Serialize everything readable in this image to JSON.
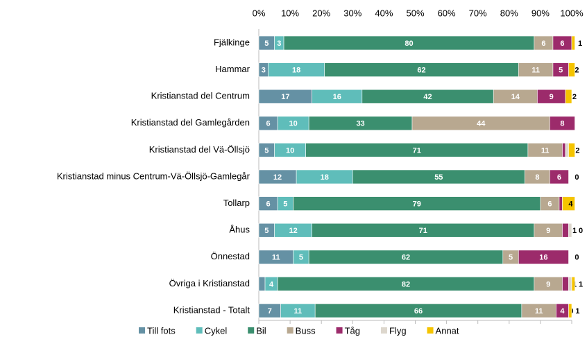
{
  "chart_data": {
    "type": "stacked-bar-horizontal",
    "categories": [
      "Fjälkinge",
      "Hammar",
      "Kristianstad del Centrum",
      "Kristianstad del Gamlegården",
      "Kristianstad del Vä-Öllsjö",
      "Kristianstad minus Centrum-Vä-Öllsjö-Gamlegår",
      "Tollarp",
      "Åhus",
      "Önnestad",
      "Övriga i Kristianstad",
      "Kristianstad - Totalt"
    ],
    "xlim": [
      0,
      100
    ],
    "xticks": [
      {
        "value": 0,
        "label": "0%"
      },
      {
        "value": 10,
        "label": "10%"
      },
      {
        "value": 20,
        "label": "20%"
      },
      {
        "value": 30,
        "label": "30%"
      },
      {
        "value": 40,
        "label": "40%"
      },
      {
        "value": 50,
        "label": "50%"
      },
      {
        "value": 60,
        "label": "60%"
      },
      {
        "value": 70,
        "label": "70%"
      },
      {
        "value": 80,
        "label": "80%"
      },
      {
        "value": 90,
        "label": "90%"
      },
      {
        "value": 100,
        "label": "100%"
      }
    ],
    "series": [
      {
        "name": "Till fots",
        "color": "#6591a4",
        "values": [
          5,
          3,
          17,
          6,
          5,
          12,
          6,
          5,
          11,
          2,
          7
        ]
      },
      {
        "name": "Cykel",
        "color": "#5fbdba",
        "values": [
          3,
          18,
          16,
          10,
          10,
          18,
          5,
          12,
          5,
          4,
          11
        ]
      },
      {
        "name": "Bil",
        "color": "#3b8f6f",
        "values": [
          80,
          62,
          42,
          33,
          71,
          55,
          79,
          71,
          62,
          82,
          66
        ]
      },
      {
        "name": "Buss",
        "color": "#b8a890",
        "values": [
          6,
          11,
          14,
          44,
          11,
          8,
          6,
          9,
          5,
          9,
          11
        ]
      },
      {
        "name": "Tåg",
        "color": "#9c2b6b",
        "values": [
          6,
          5,
          9,
          8,
          1,
          6,
          1,
          2,
          16,
          2,
          4
        ]
      },
      {
        "name": "Flyg",
        "color": "#ddd7cd",
        "values": [
          0,
          0,
          0,
          0,
          1,
          0,
          0,
          1,
          0,
          1,
          0
        ],
        "value_labels": [
          null,
          null,
          "0",
          null,
          "1",
          null,
          null,
          "1",
          null,
          "1",
          "0"
        ]
      },
      {
        "name": "Annat",
        "color": "#f5c400",
        "values": [
          1,
          2,
          2,
          0,
          2,
          0,
          4,
          0,
          0,
          1,
          1
        ],
        "value_labels": [
          "1",
          "2",
          "2",
          null,
          "2",
          "0",
          "4",
          "0",
          "0",
          "1",
          "1"
        ]
      }
    ]
  }
}
